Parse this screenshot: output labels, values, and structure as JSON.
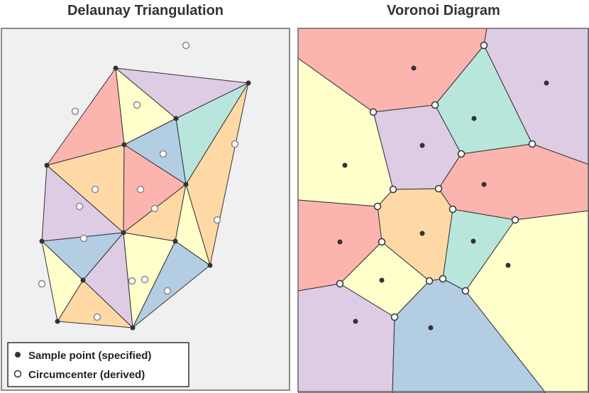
{
  "titles": {
    "left": "Delaunay Triangulation",
    "right": "Voronoi Diagram"
  },
  "legend": {
    "sample_label": "Sample point (specified)",
    "circumcenter_label": "Circumcenter (derived)"
  },
  "colors": {
    "pink": "#fbb4ae",
    "blue": "#b3cde3",
    "teal": "#b8e6dc",
    "lavender": "#decbe4",
    "orange": "#fed9a6",
    "yellow": "#ffffcc",
    "panel_bg": "#f0f0f0",
    "edge": "#333333",
    "point": "#333333",
    "circumcenter": "#888888"
  }
}
